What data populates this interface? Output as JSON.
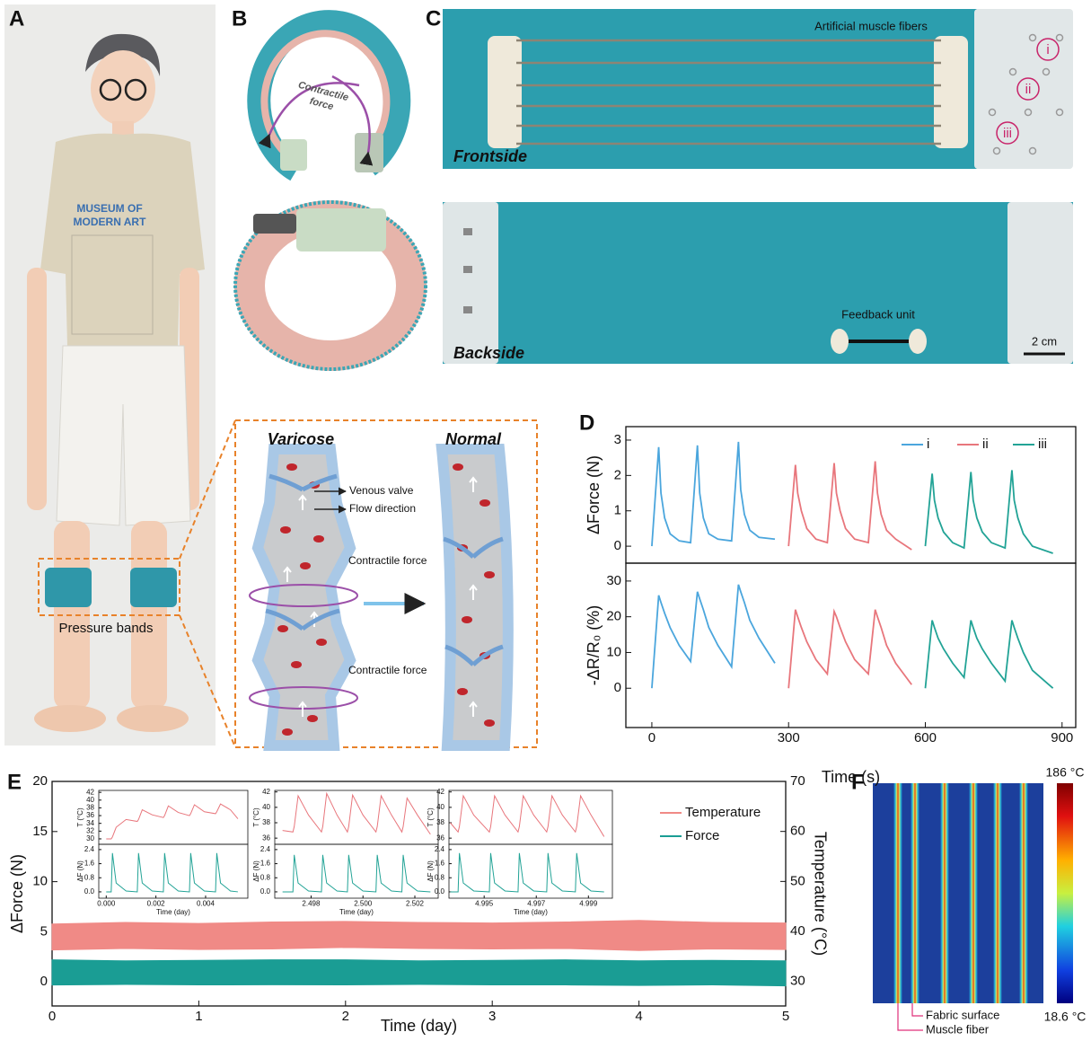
{
  "figure": {
    "panel_labels": [
      "A",
      "B",
      "C",
      "D",
      "E",
      "F"
    ],
    "photo": {
      "shirt_text": [
        "MUSEUM OF",
        "MODERN ART"
      ],
      "caption": "Pressure bands"
    },
    "band_diagram": {
      "force_label": [
        "Contractile",
        "force"
      ]
    },
    "fabric": {
      "fibers_label": "Artificial muscle fibers",
      "hook_rows": [
        "i",
        "ii",
        "iii"
      ],
      "front_label": "Frontside",
      "back_label": "Backside",
      "feedback_label": "Feedback unit",
      "scale_bar": "2 cm"
    },
    "vein_diagram": {
      "varicose": "Varicose",
      "normal": "Normal",
      "venous_valve": "Venous valve",
      "flow_direction": "Flow direction",
      "contractile_force": [
        "Contractile force",
        "Contractile force"
      ]
    },
    "thermal": {
      "scale_max": "186 °C",
      "scale_min": "18.6 °C",
      "fabric_surface": "Fabric surface",
      "muscle_fiber": "Muscle fiber"
    }
  },
  "chart_data": [
    {
      "type": "line",
      "ylabel": "ΔForce (N)",
      "xlim": [
        -57,
        930
      ],
      "ylim": [
        -0.48,
        3.38
      ],
      "yticks": [
        0,
        1,
        2,
        3
      ],
      "legend": "upper right",
      "series": [
        {
          "name": "i",
          "color": "#4ba6dd",
          "x": [
            0,
            15,
            20,
            28,
            40,
            60,
            85,
            100,
            105,
            113,
            125,
            145,
            175,
            190,
            195,
            203,
            215,
            235,
            270
          ],
          "values": [
            0,
            2.8,
            1.5,
            0.8,
            0.35,
            0.15,
            0.1,
            2.85,
            1.5,
            0.8,
            0.35,
            0.2,
            0.15,
            2.95,
            1.6,
            0.9,
            0.45,
            0.25,
            0.2
          ]
        },
        {
          "name": "ii",
          "color": "#e8767c",
          "x": [
            300,
            315,
            320,
            328,
            340,
            360,
            385,
            400,
            405,
            413,
            425,
            445,
            475,
            490,
            495,
            503,
            515,
            535,
            570
          ],
          "values": [
            0,
            2.3,
            1.5,
            1.0,
            0.5,
            0.2,
            0.1,
            2.35,
            1.5,
            1.0,
            0.5,
            0.2,
            0.1,
            2.4,
            1.5,
            0.9,
            0.45,
            0.2,
            -0.1
          ]
        },
        {
          "name": "iii",
          "color": "#22a396",
          "x": [
            600,
            615,
            620,
            628,
            640,
            660,
            685,
            700,
            705,
            713,
            725,
            745,
            775,
            790,
            795,
            803,
            815,
            835,
            880
          ],
          "values": [
            0,
            2.05,
            1.3,
            0.8,
            0.4,
            0.1,
            -0.05,
            2.1,
            1.3,
            0.8,
            0.4,
            0.1,
            -0.05,
            2.15,
            1.3,
            0.8,
            0.35,
            0.0,
            -0.2
          ]
        }
      ]
    },
    {
      "type": "line",
      "ylabel": "-ΔR/R₀ (%)",
      "xlabel": "Time (s)",
      "xlim": [
        -57,
        930
      ],
      "xticks": [
        0,
        300,
        600,
        900
      ],
      "ylim": [
        -11,
        35
      ],
      "yticks": [
        0,
        10,
        20,
        30
      ],
      "series": [
        {
          "color": "#4ba6dd",
          "x": [
            0,
            15,
            20,
            28,
            40,
            60,
            85,
            100,
            105,
            113,
            125,
            145,
            175,
            190,
            195,
            203,
            215,
            235,
            270
          ],
          "values": [
            0,
            26,
            24,
            21,
            17,
            12,
            7.5,
            27,
            25,
            22,
            17,
            12,
            6,
            29,
            27,
            24,
            19,
            14,
            7
          ]
        },
        {
          "color": "#e8767c",
          "x": [
            300,
            315,
            320,
            328,
            340,
            360,
            385,
            400,
            405,
            413,
            425,
            445,
            475,
            490,
            495,
            503,
            515,
            535,
            570
          ],
          "values": [
            0,
            22,
            20,
            17,
            13,
            8,
            4,
            21.5,
            20,
            17,
            13,
            8,
            4,
            22,
            20,
            17,
            12,
            7,
            1
          ]
        },
        {
          "color": "#22a396",
          "x": [
            600,
            615,
            620,
            628,
            640,
            660,
            685,
            700,
            705,
            713,
            725,
            745,
            775,
            790,
            795,
            803,
            815,
            835,
            880
          ],
          "values": [
            0,
            19,
            17,
            14,
            11,
            7,
            3,
            19,
            17,
            14,
            11,
            7,
            2,
            19,
            17,
            14,
            10,
            5,
            0
          ]
        }
      ]
    },
    {
      "type": "band",
      "xlabel": "Time (day)",
      "ylabel": "ΔForce (N)",
      "y2label": "Temperature (°C)",
      "xlim": [
        0,
        5
      ],
      "xticks": [
        0,
        1,
        2,
        3,
        4,
        5
      ],
      "ylim": [
        -2.4,
        20
      ],
      "yticks": [
        0,
        5,
        10,
        15,
        20
      ],
      "y2lim": [
        25.1,
        70
      ],
      "y2ticks": [
        30,
        40,
        50,
        60,
        70
      ],
      "legend": "upper right",
      "series": [
        {
          "name": "Temperature",
          "color": "#f08a86",
          "axis": "y2",
          "x": [
            0,
            0.5,
            1,
            1.5,
            2,
            2.5,
            3,
            3.5,
            4,
            4.5,
            5
          ],
          "high": [
            41.5,
            41.8,
            41.6,
            41.9,
            42,
            41.8,
            41.7,
            41.9,
            42.2,
            41.8,
            41.7
          ],
          "low": [
            36.3,
            36.6,
            36.4,
            36.5,
            36.8,
            36.6,
            36.5,
            36.6,
            36.2,
            36.5,
            36.4
          ]
        },
        {
          "name": "Force",
          "color": "#1a9d94",
          "x": [
            0,
            0.5,
            1,
            1.5,
            2,
            2.5,
            3,
            3.5,
            4,
            4.5,
            5
          ],
          "high": [
            2.2,
            2.1,
            2.15,
            2.2,
            2.2,
            2.1,
            2.15,
            2.2,
            2.1,
            2.15,
            2.1
          ],
          "low": [
            -0.3,
            -0.25,
            -0.3,
            -0.28,
            -0.3,
            -0.25,
            -0.3,
            -0.3,
            -0.35,
            -0.3,
            -0.4
          ]
        }
      ]
    },
    {
      "type": "line",
      "ylabel": "T (°C)",
      "x": [
        0,
        0.0002,
        0.00025,
        0.0004,
        0.0008,
        0.00125,
        0.0013,
        0.00145,
        0.00185,
        0.0023,
        0.00235,
        0.0025,
        0.0029,
        0.00335,
        0.0034,
        0.00355,
        0.00395,
        0.0044,
        0.00445,
        0.0046,
        0.005,
        0.0053
      ],
      "xlim": [
        -0.0003,
        0.0057
      ],
      "ylim": [
        28.6,
        42.5
      ],
      "yticks": [
        30,
        32,
        34,
        36,
        38,
        40,
        42
      ],
      "series": [
        {
          "color": "#e8767c",
          "values": [
            30,
            30,
            30.5,
            33,
            35,
            34.5,
            35,
            37.5,
            36.2,
            35.5,
            36,
            38.5,
            36.8,
            36,
            36.5,
            38.8,
            37,
            36.5,
            37,
            39,
            37.5,
            35.2
          ]
        }
      ]
    },
    {
      "type": "line",
      "ylabel": "ΔF (N)",
      "xlabel": "Time (day)",
      "x": [
        0,
        0.0002,
        0.00025,
        0.0004,
        0.0008,
        0.00125,
        0.0013,
        0.00145,
        0.00185,
        0.0023,
        0.00235,
        0.0025,
        0.0029,
        0.00335,
        0.0034,
        0.00355,
        0.00395,
        0.0044,
        0.00445,
        0.0046,
        0.005,
        0.0053
      ],
      "xlim": [
        -0.0003,
        0.0057
      ],
      "xticks": [
        {
          "value": 0,
          "label": "0.000"
        },
        0.002,
        0.004
      ],
      "ylim": [
        -0.36,
        2.7
      ],
      "yticks": [
        {
          "value": 0,
          "label": "0.0"
        },
        0.8,
        1.6,
        2.4
      ],
      "series": [
        {
          "color": "#22a396",
          "values": [
            0,
            0,
            2.2,
            0.5,
            0.05,
            0,
            2.2,
            0.5,
            0.05,
            0,
            2.2,
            0.5,
            0.05,
            0,
            2.2,
            0.5,
            0.05,
            0,
            2.2,
            0.5,
            0.05,
            0
          ]
        }
      ]
    },
    {
      "type": "line",
      "ylabel": "T (°C)",
      "x": [
        2.4969,
        2.4973,
        2.49735,
        2.4975,
        2.4979,
        2.4984,
        2.49845,
        2.4986,
        2.499,
        2.4994,
        2.49945,
        2.4996,
        2.5,
        2.5005,
        2.50055,
        2.5007,
        2.5011,
        2.5015,
        2.50155,
        2.5017,
        2.5021,
        2.5026
      ],
      "xlim": [
        2.4966,
        2.5029
      ],
      "ylim": [
        35.2,
        42.2
      ],
      "yticks": [
        36,
        38,
        40,
        42
      ],
      "series": [
        {
          "color": "#e8767c",
          "values": [
            37,
            36.8,
            37.5,
            41.5,
            39,
            36.8,
            37.5,
            41.8,
            39,
            36.8,
            37.5,
            41.6,
            39,
            36.8,
            37.5,
            41.5,
            39,
            36.8,
            37.5,
            41.2,
            39,
            36.5
          ]
        }
      ]
    },
    {
      "type": "line",
      "ylabel": "ΔF (N)",
      "xlabel": "Time (day)",
      "x": [
        2.4969,
        2.4973,
        2.49735,
        2.4975,
        2.4979,
        2.4984,
        2.49845,
        2.4986,
        2.499,
        2.4994,
        2.49945,
        2.4996,
        2.5,
        2.5005,
        2.50055,
        2.5007,
        2.5011,
        2.5015,
        2.50155,
        2.5017,
        2.5021,
        2.5026
      ],
      "xlim": [
        2.4966,
        2.5029
      ],
      "xticks": [
        2.498,
        {
          "value": 2.5,
          "label": "2.500"
        },
        2.502
      ],
      "ylim": [
        -0.36,
        2.7
      ],
      "yticks": [
        {
          "value": 0,
          "label": "0.0"
        },
        0.8,
        1.6,
        2.4
      ],
      "series": [
        {
          "color": "#22a396",
          "values": [
            0,
            0,
            2.1,
            0.5,
            0.05,
            0,
            2.1,
            0.5,
            0.05,
            0,
            2.1,
            0.5,
            0.05,
            0,
            2.1,
            0.5,
            0.05,
            0,
            2.1,
            0.5,
            0.05,
            0
          ]
        }
      ]
    },
    {
      "type": "line",
      "ylabel": "T (°C)",
      "x": [
        4.9937,
        4.994,
        4.99405,
        4.9942,
        4.9946,
        4.9952,
        4.99525,
        4.9954,
        4.9958,
        4.9963,
        4.99635,
        4.9965,
        4.9969,
        4.9974,
        4.99745,
        4.9976,
        4.998,
        4.9985,
        4.99855,
        4.9987,
        4.9991,
        4.9996
      ],
      "xlim": [
        4.99365,
        4.99992
      ],
      "ylim": [
        35.2,
        42.2
      ],
      "yticks": [
        36,
        38,
        40,
        42
      ],
      "series": [
        {
          "color": "#e8767c",
          "values": [
            38,
            36.8,
            37.5,
            41.5,
            39,
            36.8,
            37.5,
            41.5,
            39,
            36.8,
            37.5,
            41.5,
            39,
            36.8,
            37.5,
            41.5,
            39,
            36.8,
            37.5,
            41.5,
            39,
            36.2
          ]
        }
      ]
    },
    {
      "type": "line",
      "ylabel": "ΔF (N)",
      "xlabel": "Time (day)",
      "x": [
        4.9937,
        4.994,
        4.99405,
        4.9942,
        4.9946,
        4.9952,
        4.99525,
        4.9954,
        4.9958,
        4.9963,
        4.99635,
        4.9965,
        4.9969,
        4.9974,
        4.99745,
        4.9976,
        4.998,
        4.9985,
        4.99855,
        4.9987,
        4.9991,
        4.9996
      ],
      "xlim": [
        4.99365,
        4.99992
      ],
      "xticks": [
        4.995,
        4.997,
        4.999
      ],
      "ylim": [
        -0.36,
        2.7
      ],
      "yticks": [
        {
          "value": 0,
          "label": "0.0"
        },
        0.8,
        1.6,
        2.4
      ],
      "series": [
        {
          "color": "#22a396",
          "values": [
            0,
            0,
            2.2,
            0.5,
            0.05,
            0,
            2.2,
            0.5,
            0.05,
            0,
            2.2,
            0.5,
            0.05,
            0,
            2.2,
            0.5,
            0.05,
            0,
            2.2,
            0.5,
            0.05,
            0
          ]
        }
      ]
    }
  ]
}
